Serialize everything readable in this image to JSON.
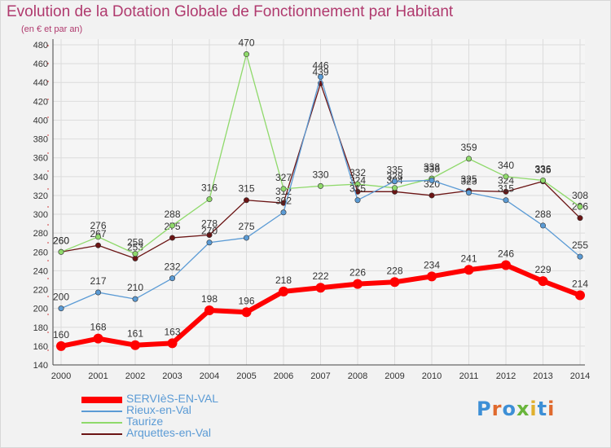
{
  "title": "Evolution de la Dotation Globale de Fonctionnement par Habitant",
  "subtitle": "(en € et par an)",
  "logo": {
    "text": "Proxiti",
    "colors": [
      "#3d8fd6",
      "#e06a2e",
      "#3d8fd6",
      "#69b53b",
      "#e0b02e",
      "#3d8fd6",
      "#e06a2e"
    ]
  },
  "chart_data": {
    "type": "line",
    "title": "Evolution de la Dotation Globale de Fonctionnement par Habitant",
    "subtitle": "(en € et par an)",
    "x": [
      "2000",
      "2001",
      "2002",
      "2003",
      "2004",
      "2005",
      "2006",
      "2007",
      "2008",
      "2009",
      "2010",
      "2011",
      "2012",
      "2013",
      "2014"
    ],
    "yticks": [
      "140",
      "160",
      "180",
      "200",
      "220",
      "240",
      "260",
      "280",
      "300",
      "320",
      "340",
      "360",
      "380",
      "400",
      "420",
      "440",
      "460",
      "480"
    ],
    "ylim": [
      140,
      480
    ],
    "grid": true,
    "legend_position": "bottom-left",
    "series": [
      {
        "name": "Arquettes-en-Val",
        "color": "#6b1414",
        "values": [
          260,
          267,
          253,
          275,
          278,
          315,
          312,
          439,
          324,
          324,
          320,
          325,
          324,
          335,
          296
        ]
      },
      {
        "name": "Taurize",
        "color": "#8fd96b",
        "values": [
          260,
          276,
          258,
          288,
          316,
          470,
          327,
          330,
          332,
          328,
          338,
          359,
          340,
          336,
          308
        ]
      },
      {
        "name": "Rieux-en-Val",
        "color": "#5b9bd5",
        "values": [
          200,
          217,
          210,
          232,
          270,
          275,
          302,
          446,
          315,
          335,
          336,
          323,
          315,
          288,
          255
        ]
      },
      {
        "name": "SERVIèS-EN-VAL",
        "color": "#ff0000",
        "values": [
          160,
          168,
          161,
          163,
          198,
          196,
          218,
          222,
          226,
          228,
          234,
          241,
          246,
          229,
          214
        ]
      }
    ]
  }
}
